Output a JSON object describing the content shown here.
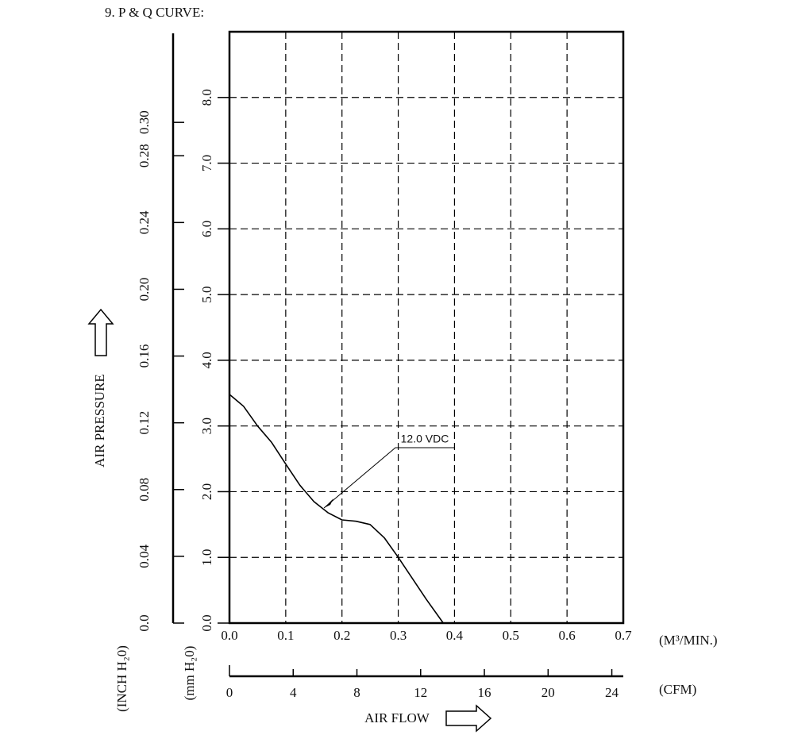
{
  "chart_data": {
    "type": "line",
    "title": "9. P & Q CURVE:",
    "x": [
      0,
      0.025,
      0.05,
      0.075,
      0.1,
      0.125,
      0.15,
      0.175,
      0.2,
      0.225,
      0.25,
      0.275,
      0.3,
      0.325,
      0.35,
      0.38
    ],
    "series": [
      {
        "name": "12.0 VDC",
        "color": "#000000",
        "values": [
          3.48,
          3.3,
          3.0,
          2.75,
          2.42,
          2.1,
          1.85,
          1.68,
          1.57,
          1.55,
          1.5,
          1.3,
          1.0,
          0.68,
          0.36,
          0
        ]
      }
    ],
    "xlim": [
      0,
      0.7
    ],
    "xticks": [
      {
        "value": 0,
        "label": "0.0"
      },
      0.1,
      0.2,
      0.3,
      0.4,
      0.5,
      0.6,
      0.7
    ],
    "ylim": [
      0,
      9
    ],
    "yticks": [
      {
        "value": 0,
        "label": "0.0"
      },
      {
        "value": 1,
        "label": "1.0"
      },
      {
        "value": 2,
        "label": "2.0"
      },
      {
        "value": 3,
        "label": "3.0"
      },
      {
        "value": 4,
        "label": "4.0"
      },
      {
        "value": 5,
        "label": "5.0"
      },
      {
        "value": 6,
        "label": "6.0"
      },
      {
        "value": 7,
        "label": "7.0"
      },
      {
        "value": 8,
        "label": "8.0"
      }
    ],
    "y2lim": [
      0,
      0.3543
    ],
    "y2ticks": [
      {
        "value": 0,
        "label": "0.0"
      },
      0.04,
      0.08,
      0.12,
      0.16,
      {
        "value": 0.2,
        "label": "0.20"
      },
      0.24,
      0.28,
      {
        "value": 0.3,
        "label": "0.30"
      }
    ],
    "x2lim": [
      0,
      24.72
    ],
    "x2ticks": [
      0,
      4,
      8,
      12,
      16,
      20,
      24
    ],
    "grid": true,
    "y_label": "AIR PRESSURE",
    "y_unit": "(mm H₂0)",
    "y2_unit": "(INCH H₂0)",
    "x_label": "AIR FLOW",
    "x_unit": "(M³/MIN.)",
    "x2_unit": "(CFM)"
  }
}
